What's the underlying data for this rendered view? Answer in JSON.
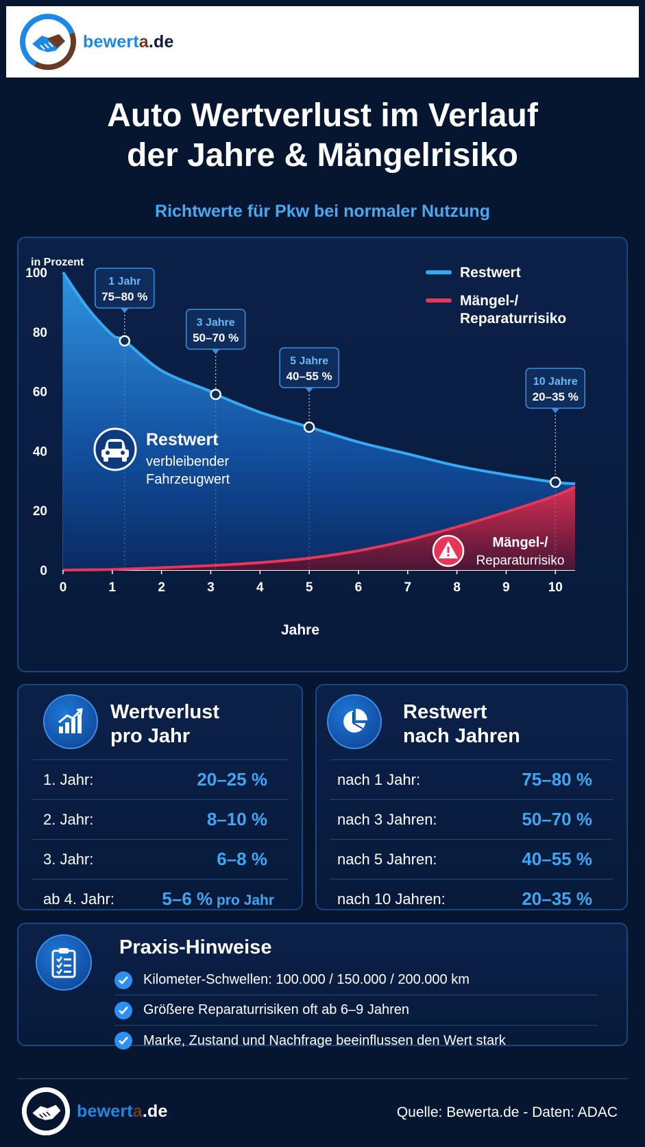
{
  "brand": {
    "name_be": "be",
    "name_wert": "wert",
    "name_a": "a",
    "name_de": ".de"
  },
  "title": {
    "line1": "Auto Wertverlust im Verlauf",
    "line2": "der Jahre & Mängelrisiko"
  },
  "subtitle": "Richtwerte für Pkw bei normaler Nutzung",
  "chart_data": {
    "type": "area",
    "ylabel": "in Prozent",
    "xlabel": "Jahre",
    "xlim": [
      0,
      10.4
    ],
    "ylim": [
      0,
      100
    ],
    "x_ticks": [
      0,
      1,
      2,
      3,
      4,
      5,
      6,
      7,
      8,
      9,
      10
    ],
    "y_ticks": [
      0,
      20,
      40,
      60,
      80,
      100
    ],
    "legend": {
      "position": "top-right",
      "items": [
        "Restwert",
        "Mängel-/ Reparaturrisiko"
      ]
    },
    "series": [
      {
        "name": "Restwert",
        "color": "#35aaf2",
        "x": [
          0,
          0.5,
          1,
          1.25,
          2,
          3,
          3.1,
          4,
          5,
          6,
          7,
          8,
          9,
          10,
          10.4
        ],
        "values": [
          100,
          88,
          79,
          77,
          67,
          60,
          59,
          53,
          48,
          43,
          39,
          35,
          32,
          29.5,
          29
        ]
      },
      {
        "name": "Mängel-/ Reparaturrisiko",
        "color": "#e8365a",
        "x": [
          0,
          1,
          2,
          3,
          4,
          5,
          6,
          7,
          8,
          9,
          10,
          10.4
        ],
        "values": [
          0,
          0.2,
          0.8,
          1.5,
          2.5,
          4,
          6.5,
          10,
          14.5,
          19.5,
          25,
          28
        ]
      }
    ],
    "annotations": [
      {
        "x": 1.25,
        "y": 77,
        "label_top": "1 Jahr",
        "label_bottom": "75–80 %"
      },
      {
        "x": 3.1,
        "y": 59,
        "label_top": "3 Jahre",
        "label_bottom": "50–70 %"
      },
      {
        "x": 5,
        "y": 48,
        "label_top": "5 Jahre",
        "label_bottom": "40–55 %"
      },
      {
        "x": 10,
        "y": 29.5,
        "label_top": "10 Jahre",
        "label_bottom": "20–35 %"
      }
    ],
    "area_labels": {
      "restwert_title": "Restwert",
      "restwert_sub1": "verbleibender",
      "restwert_sub2": "Fahrzeugwert",
      "risk_line1": "Mängel-/",
      "risk_line2": "Reparaturrisiko"
    }
  },
  "table_left": {
    "title1": "Wertverlust",
    "title2": "pro Jahr",
    "icon": "growth-chart-icon",
    "rows": [
      {
        "label": "1. Jahr:",
        "value": "20–25 %",
        "suffix": ""
      },
      {
        "label": "2. Jahr:",
        "value": "8–10 %",
        "suffix": ""
      },
      {
        "label": "3. Jahr:",
        "value": "6–8 %",
        "suffix": ""
      },
      {
        "label": "ab 4. Jahr:",
        "value": "5–6 %",
        "suffix": " pro Jahr"
      }
    ]
  },
  "table_right": {
    "title1": "Restwert",
    "title2": "nach Jahren",
    "icon": "pie-chart-icon",
    "rows": [
      {
        "label": "nach 1 Jahr:",
        "value": "75–80 %"
      },
      {
        "label": "nach 3 Jahren:",
        "value": "50–70 %"
      },
      {
        "label": "nach 5 Jahren:",
        "value": "40–55 %"
      },
      {
        "label": "nach 10 Jahren:",
        "value": "20–35 %"
      }
    ]
  },
  "notes": {
    "title": "Praxis-Hinweise",
    "icon": "clipboard-checklist-icon",
    "items": [
      "Kilometer-Schwellen: 100.000 / 150.000 / 200.000 km",
      "Größere Reparaturrisiken oft ab 6–9 Jahren",
      "Marke, Zustand und Nachfrage beeinflussen den Wert stark"
    ]
  },
  "footer": {
    "source": "Quelle: Bewerta.de - Daten: ADAC"
  },
  "colors": {
    "background": "#071630",
    "accent_blue": "#35aaf2",
    "risk_red": "#e8365a",
    "panel_border": "#1c4680"
  }
}
